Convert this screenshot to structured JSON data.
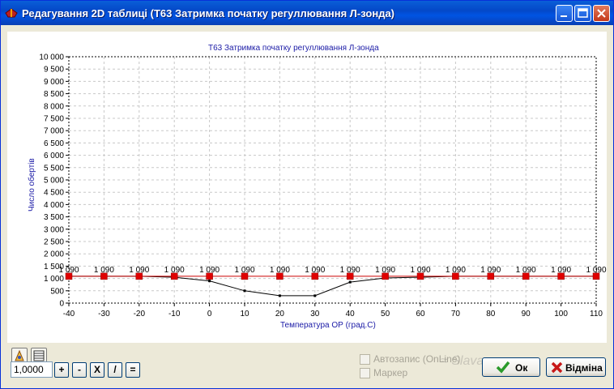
{
  "window": {
    "title": "Редагування 2D таблиці (Т63 Затримка початку регуллювання Л-зонда)"
  },
  "chart_data": {
    "type": "line",
    "title": "Т63 Затримка початку регуллювання Л-зонда",
    "xlabel": "Температура ОР (град.С)",
    "ylabel": "Число обертів",
    "x": [
      -40,
      -30,
      -20,
      -10,
      0,
      10,
      20,
      30,
      40,
      50,
      60,
      70,
      80,
      90,
      100,
      110
    ],
    "x_tick_labels": [
      "-40",
      "-30",
      "-20",
      "-10",
      "0",
      "10",
      "20",
      "30",
      "40",
      "50",
      "60",
      "70",
      "80",
      "90",
      "100",
      "110"
    ],
    "y_tick_labels": [
      "0",
      "500",
      "1 000",
      "1 500",
      "2 000",
      "2 500",
      "3 000",
      "3 500",
      "4 000",
      "4 500",
      "5 000",
      "5 500",
      "6 000",
      "6 500",
      "7 000",
      "7 500",
      "8 000",
      "8 500",
      "9 000",
      "9 500",
      "10 000"
    ],
    "ylim": [
      0,
      10000
    ],
    "xlim": [
      -40,
      110
    ],
    "grid": true,
    "series": [
      {
        "values": [
          1090,
          1090,
          1090,
          1090,
          1090,
          1090,
          1090,
          1090,
          1090,
          1090,
          1090,
          1090,
          1090,
          1090,
          1090,
          1090
        ],
        "labels": [
          "1 090",
          "1 090",
          "1 090",
          "1 090",
          "1 090",
          "1 090",
          "1 090",
          "1 090",
          "1 090",
          "1 090",
          "1 090",
          "1 090",
          "1 090",
          "1 090",
          "1 090",
          "1 090"
        ],
        "color": "#cc0000",
        "marker": "square"
      },
      {
        "values": [
          1090,
          1090,
          1090,
          1050,
          900,
          500,
          300,
          300,
          850,
          1020,
          1050,
          1090,
          1090,
          1090,
          1090,
          1090
        ],
        "color": "#000000"
      }
    ]
  },
  "controls": {
    "value": "1,0000",
    "op_plus": "+",
    "op_minus": "-",
    "op_mul": "X",
    "op_div": "/",
    "op_eq": "=",
    "autosave_label": "Автозапис (OnLine)",
    "marker_label": "Маркер",
    "ok_label": "Ок",
    "cancel_label": "Відміна"
  }
}
